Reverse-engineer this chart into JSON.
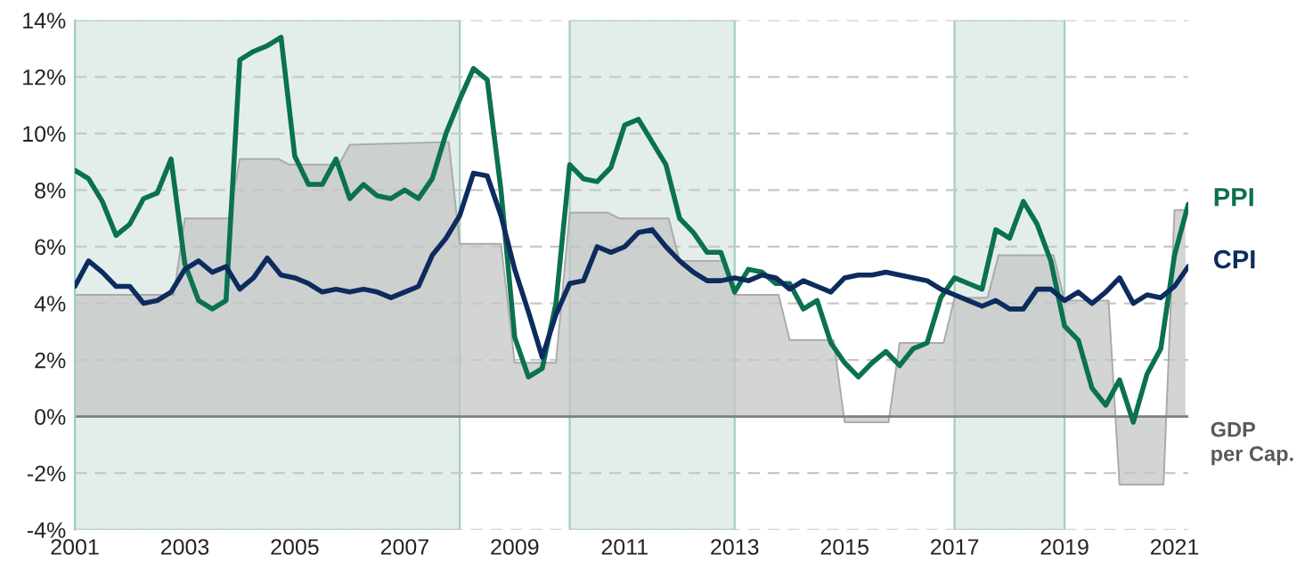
{
  "chart_data": {
    "type": "line",
    "x": [
      2001,
      2001.25,
      2001.5,
      2001.75,
      2002,
      2002.25,
      2002.5,
      2002.75,
      2003,
      2003.25,
      2003.5,
      2003.75,
      2004,
      2004.25,
      2004.5,
      2004.75,
      2005,
      2005.25,
      2005.5,
      2005.75,
      2006,
      2006.25,
      2006.5,
      2006.75,
      2007,
      2007.25,
      2007.5,
      2007.75,
      2008,
      2008.25,
      2008.5,
      2008.75,
      2009,
      2009.25,
      2009.5,
      2009.75,
      2010,
      2010.25,
      2010.5,
      2010.75,
      2011,
      2011.25,
      2011.5,
      2011.75,
      2012,
      2012.25,
      2012.5,
      2012.75,
      2013,
      2013.25,
      2013.5,
      2013.75,
      2014,
      2014.25,
      2014.5,
      2014.75,
      2015,
      2015.25,
      2015.5,
      2015.75,
      2016,
      2016.25,
      2016.5,
      2016.75,
      2017,
      2017.25,
      2017.5,
      2017.75,
      2018,
      2018.25,
      2018.5,
      2018.75,
      2019,
      2019.25,
      2019.5,
      2019.75,
      2020,
      2020.25,
      2020.5,
      2020.75,
      2021,
      2021.25
    ],
    "series": [
      {
        "type": "area",
        "name": "GDP\nper Cap.",
        "color": "#c4c6c5",
        "x": [
          2001,
          2002.8,
          2003,
          2003.8,
          2004,
          2004.7,
          2004.9,
          2005.8,
          2006,
          2007.8,
          2008,
          2008.75,
          2009,
          2009.75,
          2010,
          2010.7,
          2010.9,
          2011.8,
          2012,
          2012.8,
          2013,
          2013.8,
          2014,
          2014.8,
          2015,
          2015.8,
          2016,
          2016.8,
          2017,
          2017.6,
          2017.8,
          2018.8,
          2019,
          2019.8,
          2020,
          2020.8,
          2021,
          2021.2
        ],
        "values": [
          4.3,
          4.3,
          7.0,
          7.0,
          9.1,
          9.1,
          8.9,
          8.9,
          9.6,
          9.7,
          6.1,
          6.1,
          1.9,
          1.9,
          7.2,
          7.2,
          7.0,
          7.0,
          5.5,
          5.5,
          4.3,
          4.3,
          2.7,
          2.7,
          -0.2,
          -0.2,
          2.6,
          2.6,
          4.2,
          4.2,
          5.7,
          5.7,
          4.1,
          4.1,
          -2.4,
          -2.4,
          7.3,
          7.3
        ]
      },
      {
        "name": "PPI",
        "color": "#0b7150",
        "values": [
          8.7,
          8.4,
          7.6,
          6.4,
          6.8,
          7.7,
          7.9,
          9.1,
          5.4,
          4.1,
          3.8,
          4.1,
          12.6,
          12.9,
          13.1,
          13.4,
          9.2,
          8.2,
          8.2,
          9.1,
          7.7,
          8.2,
          7.8,
          7.7,
          8.0,
          7.7,
          8.4,
          10.0,
          11.2,
          12.3,
          11.9,
          8.0,
          2.8,
          1.4,
          1.7,
          4.0,
          8.9,
          8.4,
          8.3,
          8.8,
          10.3,
          10.5,
          9.7,
          8.9,
          7.0,
          6.5,
          5.8,
          5.8,
          4.4,
          5.2,
          5.1,
          4.7,
          4.7,
          3.8,
          4.1,
          2.6,
          1.9,
          1.4,
          1.9,
          2.3,
          1.8,
          2.4,
          2.6,
          4.2,
          4.9,
          4.7,
          4.5,
          6.6,
          6.3,
          7.6,
          6.8,
          5.5,
          3.2,
          2.7,
          1.0,
          0.4,
          1.3,
          -0.2,
          1.5,
          2.4,
          5.7,
          7.5
        ]
      },
      {
        "name": "CPI",
        "color": "#0d2b5e",
        "values": [
          4.6,
          5.5,
          5.1,
          4.6,
          4.6,
          4.0,
          4.1,
          4.4,
          5.2,
          5.5,
          5.1,
          5.3,
          4.5,
          4.9,
          5.6,
          5.0,
          4.9,
          4.7,
          4.4,
          4.5,
          4.4,
          4.5,
          4.4,
          4.2,
          4.4,
          4.6,
          5.7,
          6.3,
          7.1,
          8.6,
          8.5,
          7.1,
          5.2,
          3.7,
          2.1,
          3.6,
          4.7,
          4.8,
          6.0,
          5.8,
          6.0,
          6.5,
          6.6,
          6.0,
          5.5,
          5.1,
          4.8,
          4.8,
          4.9,
          4.8,
          5.0,
          4.9,
          4.5,
          4.8,
          4.6,
          4.4,
          4.9,
          5.0,
          5.0,
          5.1,
          5.0,
          4.9,
          4.8,
          4.5,
          4.3,
          4.1,
          3.9,
          4.1,
          3.8,
          3.8,
          4.5,
          4.5,
          4.1,
          4.4,
          4.0,
          4.4,
          4.9,
          4.0,
          4.3,
          4.2,
          4.6,
          5.3
        ]
      }
    ],
    "bands": [
      {
        "axis": "x",
        "from": 2001,
        "to": 2008,
        "color": "#e3eeeb"
      },
      {
        "axis": "x",
        "from": 2010,
        "to": 2013,
        "color": "#e3eeeb"
      },
      {
        "axis": "x",
        "from": 2017,
        "to": 2019,
        "color": "#e3eeeb"
      }
    ],
    "ref_lines": [
      {
        "axis": "y",
        "value": 0,
        "color": "#7f7f7f",
        "line_style": "solid"
      }
    ],
    "xlim": [
      2001,
      2021.25
    ],
    "xticks": [
      2001,
      2003,
      2005,
      2007,
      2009,
      2011,
      2013,
      2015,
      2017,
      2019,
      2021
    ],
    "ylim": [
      -4,
      14
    ],
    "yticks": [
      {
        "value": -4,
        "label": "-4%"
      },
      {
        "value": -2,
        "label": "-2%"
      },
      {
        "value": 0,
        "label": "0%"
      },
      {
        "value": 2,
        "label": "2%"
      },
      {
        "value": 4,
        "label": "4%"
      },
      {
        "value": 6,
        "label": "6%"
      },
      {
        "value": 8,
        "label": "8%"
      },
      {
        "value": 10,
        "label": "10%"
      },
      {
        "value": 12,
        "label": "12%"
      },
      {
        "value": 14,
        "label": "14%"
      }
    ],
    "grid": "y",
    "legend": false,
    "line_style": "solid",
    "marker": "none"
  }
}
